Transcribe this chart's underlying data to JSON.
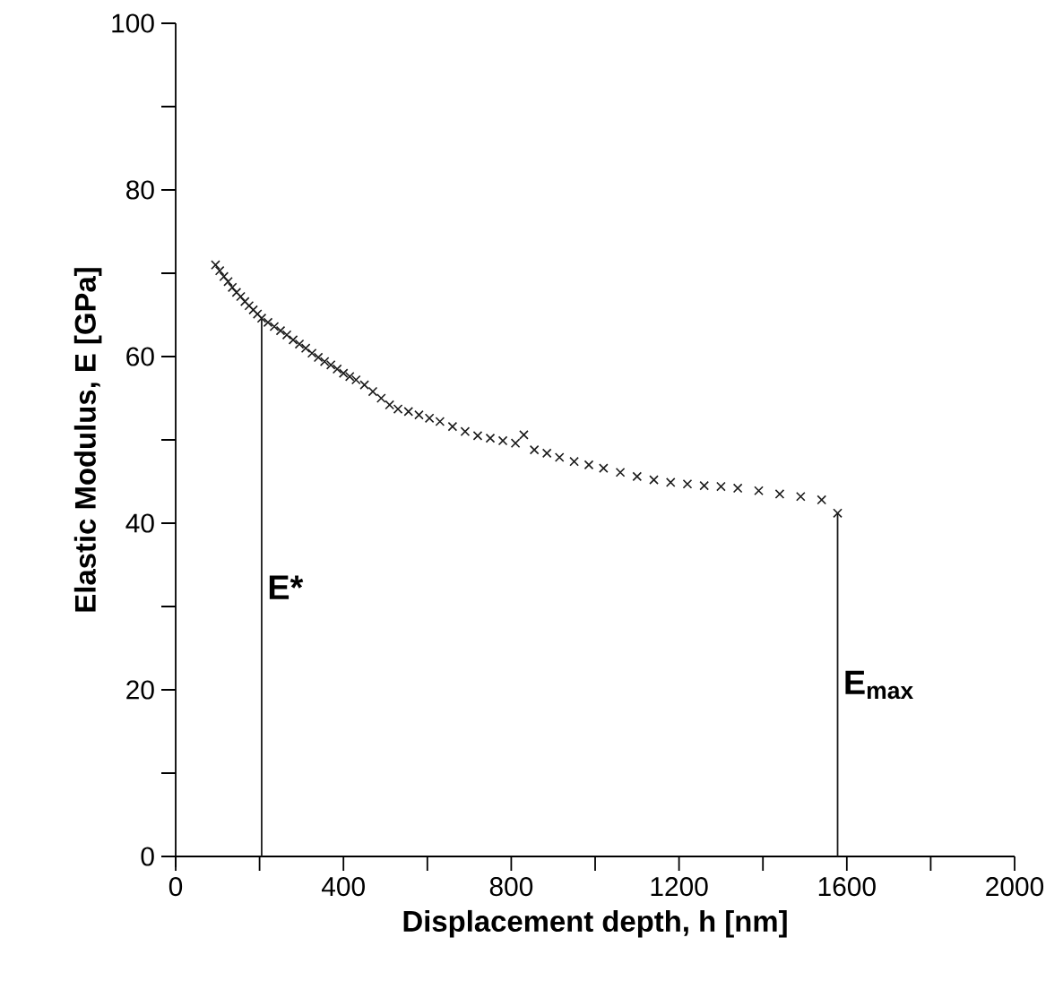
{
  "chart_data": {
    "type": "scatter",
    "xlabel": "Displacement depth, h [nm]",
    "ylabel": "Elastic Modulus, E [GPa]",
    "marker": "cross",
    "grid": false,
    "xlim": [
      0,
      2000
    ],
    "ylim": [
      0,
      100
    ],
    "xticks": [
      0,
      {
        "value": 200,
        "label": null
      },
      400,
      {
        "value": 600,
        "label": null
      },
      800,
      {
        "value": 1000,
        "label": null
      },
      1200,
      {
        "value": 1400,
        "label": null
      },
      1600,
      {
        "value": 1800,
        "label": null
      },
      2000
    ],
    "yticks": [
      0,
      {
        "value": 10,
        "label": null
      },
      20,
      {
        "value": 30,
        "label": null
      },
      40,
      {
        "value": 50,
        "label": null
      },
      60,
      {
        "value": 70,
        "label": null
      },
      80,
      {
        "value": 90,
        "label": null
      },
      100
    ],
    "series": [
      {
        "color": "#1a1a1a",
        "x": [
          95,
          105,
          115,
          125,
          135,
          145,
          155,
          165,
          175,
          185,
          195,
          205,
          220,
          235,
          250,
          265,
          280,
          295,
          310,
          325,
          340,
          355,
          370,
          385,
          400,
          415,
          430,
          450,
          470,
          490,
          510,
          530,
          555,
          580,
          605,
          630,
          660,
          690,
          720,
          750,
          780,
          810,
          830,
          855,
          885,
          915,
          950,
          985,
          1020,
          1060,
          1100,
          1140,
          1180,
          1220,
          1260,
          1300,
          1340,
          1390,
          1440,
          1490,
          1540,
          1578
        ],
        "values": [
          71.0,
          70.3,
          69.6,
          69.0,
          68.3,
          67.7,
          67.2,
          66.6,
          66.1,
          65.6,
          65.1,
          64.6,
          64.1,
          63.6,
          63.1,
          62.6,
          62.0,
          61.5,
          61.0,
          60.4,
          59.9,
          59.4,
          59.0,
          58.5,
          58.0,
          57.6,
          57.2,
          56.6,
          55.8,
          55.0,
          54.2,
          53.7,
          53.4,
          53.0,
          52.6,
          52.2,
          51.6,
          51.0,
          50.5,
          50.2,
          49.9,
          49.6,
          50.6,
          48.8,
          48.4,
          47.9,
          47.4,
          47.0,
          46.6,
          46.1,
          45.6,
          45.2,
          44.9,
          44.7,
          44.5,
          44.4,
          44.2,
          43.9,
          43.5,
          43.2,
          42.8,
          41.2
        ]
      }
    ],
    "ref_lines": [
      {
        "axis": "x",
        "value": 205,
        "label": "E*",
        "color": "#1a1a1a"
      },
      {
        "axis": "x",
        "value": 1578,
        "label": "E$_{max}$",
        "color": "#1a1a1a"
      }
    ]
  }
}
